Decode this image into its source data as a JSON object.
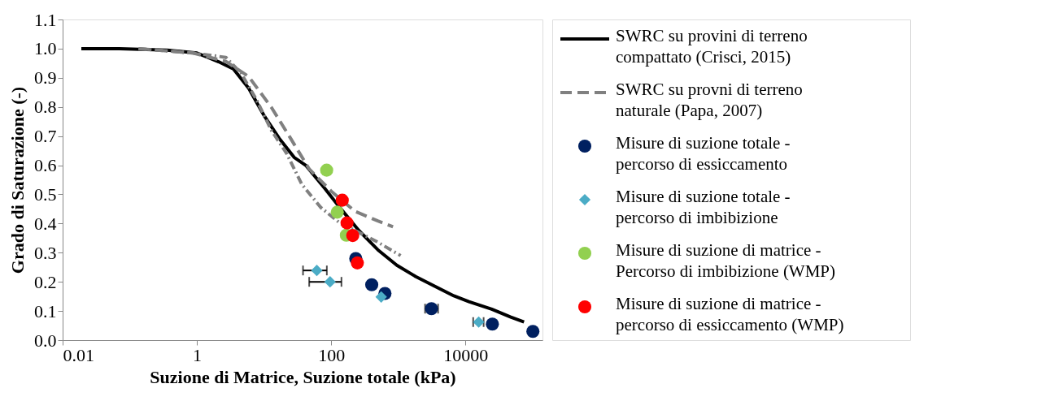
{
  "chart_data": {
    "type": "scatter",
    "xlabel": "Suzione di Matrice, Suzione totale (kPa)",
    "ylabel": "Grado di Saturazione (-)",
    "log": "x",
    "xlim": [
      0.01,
      140000
    ],
    "xticks": [
      0.01,
      1,
      100,
      10000
    ],
    "ylim": [
      0,
      1.1
    ],
    "yticks": [
      {
        "value": 0,
        "label": "0.0"
      },
      0.1,
      0.2,
      0.3,
      0.4,
      0.5,
      0.6,
      0.7,
      0.8,
      0.9,
      {
        "value": 1,
        "label": "1.0"
      },
      1.1
    ],
    "grid": false,
    "legend": "right",
    "series": [
      {
        "name": "SWRC su provini di terreno compattato (Crisci, 2015)",
        "type": "line",
        "line_style": "solid",
        "color": "#000000",
        "x": [
          0.019,
          0.07,
          0.36,
          1,
          2.1,
          3.5,
          5.9,
          9.9,
          16.7,
          28,
          41.6,
          80,
          134,
          258,
          494,
          948,
          1816,
          3970,
          6700,
          11250,
          24600,
          47200,
          74300
        ],
        "values": [
          1.0,
          1.0,
          0.995,
          0.985,
          0.955,
          0.93,
          0.864,
          0.772,
          0.693,
          0.627,
          0.6,
          0.521,
          0.455,
          0.376,
          0.31,
          0.257,
          0.218,
          0.178,
          0.152,
          0.132,
          0.106,
          0.079,
          0.062
        ]
      },
      {
        "name": "SWRC su provni di terreno naturale (Papa, 2007)",
        "type": "line",
        "line_style": "dashed",
        "color": "#808080",
        "x": [
          0.135,
          0.87,
          2.7,
          5.9,
          12.9,
          24.7,
          47,
          103,
          226,
          494,
          832
        ],
        "values": [
          1.0,
          0.985,
          0.956,
          0.904,
          0.798,
          0.693,
          0.587,
          0.508,
          0.442,
          0.409,
          0.389
        ]
      },
      {
        "type": "line",
        "line_style": "dashdot",
        "color": "#808080",
        "x": [
          0.135,
          0.87,
          2.7,
          4.5,
          7.7,
          12.9,
          21.7,
          36.6,
          70,
          134,
          294,
          494,
          1080
        ],
        "values": [
          1.0,
          0.985,
          0.97,
          0.917,
          0.825,
          0.719,
          0.64,
          0.534,
          0.455,
          0.402,
          0.363,
          0.336,
          0.29
        ]
      },
      {
        "name": "Misure di suzione totale - percorso di essiccamento",
        "marker": "circle",
        "color": "#002060",
        "x": [
          232,
          401,
          631,
          3110,
          25100,
          100700
        ],
        "values": [
          0.28,
          0.19,
          0.16,
          0.108,
          0.055,
          0.03
        ],
        "xerrors": [
          null,
          null,
          null,
          [
            2500,
            3900
          ],
          null,
          null
        ]
      },
      {
        "name": "Misure di suzione totale - percorso di imbibizione",
        "marker": "diamond",
        "color": "#4bacc6",
        "x": [
          61,
          96,
          555,
          15700
        ],
        "values": [
          0.239,
          0.2,
          0.148,
          0.062
        ],
        "xerrors": [
          [
            38,
            86
          ],
          [
            47,
            142
          ],
          null,
          [
            13000,
            18600
          ]
        ]
      },
      {
        "name": "Misure di suzione di matrice - Percorso di imbibizione (WMP)",
        "marker": "circle",
        "color": "#92d050",
        "x": [
          85.5,
          123,
          168
        ],
        "values": [
          0.583,
          0.439,
          0.36
        ]
      },
      {
        "name": "Misure di suzione di matrice - percorso di essiccamento (WMP)",
        "marker": "circle",
        "color": "#ff0000",
        "x": [
          146,
          172,
          209,
          245
        ],
        "values": [
          0.48,
          0.402,
          0.359,
          0.265
        ]
      }
    ]
  }
}
